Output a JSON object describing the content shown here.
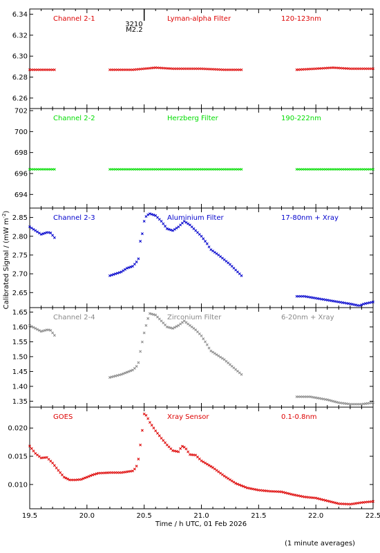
{
  "footnote": "(1 minute averages)",
  "colors": {
    "red": "#dd0000",
    "green": "#00dd00",
    "blue": "#0000cc",
    "grey": "#888888"
  },
  "chart_data": {
    "type": "scatter",
    "xlabel": "Time / h UTC, 01 Feb 2026",
    "ylabel_prefix": "Calibrated Signal / (mW m",
    "ylabel_sup": "-2",
    "ylabel_suffix": ")",
    "xlim": [
      19.5,
      22.5
    ],
    "x_ticks": [
      "19.5",
      "20.0",
      "20.5",
      "21.0",
      "21.5",
      "22.0",
      "22.5"
    ],
    "flare_marker": {
      "x": 20.5,
      "id": "3210",
      "class": "M2.2"
    },
    "panels": [
      {
        "name": "Channel 2-1",
        "filter": "Lyman-alpha Filter",
        "band": "120-123nm",
        "color": "red",
        "ylim": [
          6.25,
          6.345
        ],
        "y_ticks": [
          6.26,
          6.28,
          6.3,
          6.32,
          6.34
        ],
        "tick_decimals": 2,
        "points": [
          [
            19.5,
            6.287
          ],
          [
            19.6,
            6.287
          ],
          [
            19.72,
            6.287
          ],
          [
            20.2,
            6.287
          ],
          [
            20.4,
            6.287
          ],
          [
            20.5,
            6.288
          ],
          [
            20.6,
            6.289
          ],
          [
            20.75,
            6.288
          ],
          [
            21.0,
            6.288
          ],
          [
            21.2,
            6.287
          ],
          [
            21.35,
            6.287
          ],
          [
            21.83,
            6.287
          ],
          [
            22.0,
            6.288
          ],
          [
            22.15,
            6.289
          ],
          [
            22.3,
            6.288
          ],
          [
            22.5,
            6.288
          ]
        ],
        "gaps": [
          [
            19.73,
            20.19
          ],
          [
            21.36,
            21.82
          ]
        ]
      },
      {
        "name": "Channel 2-2",
        "filter": "Herzberg Filter",
        "band": "190-222nm",
        "color": "green",
        "ylim": [
          692.7,
          702.2
        ],
        "y_ticks": [
          694,
          696,
          698,
          700,
          702
        ],
        "tick_decimals": 0,
        "points": [
          [
            19.5,
            696.4
          ],
          [
            19.72,
            696.4
          ],
          [
            20.2,
            696.4
          ],
          [
            20.8,
            696.4
          ],
          [
            21.35,
            696.4
          ],
          [
            21.83,
            696.4
          ],
          [
            22.5,
            696.4
          ]
        ],
        "gaps": [
          [
            19.73,
            20.19
          ],
          [
            21.36,
            21.82
          ]
        ]
      },
      {
        "name": "Channel 2-3",
        "filter": "Aluminium Filter",
        "band": "17-80nm + Xray",
        "color": "blue",
        "ylim": [
          2.61,
          2.875
        ],
        "y_ticks": [
          2.65,
          2.7,
          2.75,
          2.8,
          2.85
        ],
        "tick_decimals": 2,
        "points": [
          [
            19.5,
            2.825
          ],
          [
            19.55,
            2.815
          ],
          [
            19.6,
            2.805
          ],
          [
            19.65,
            2.81
          ],
          [
            19.68,
            2.81
          ],
          [
            19.72,
            2.795
          ],
          [
            20.2,
            2.695
          ],
          [
            20.25,
            2.7
          ],
          [
            20.3,
            2.705
          ],
          [
            20.35,
            2.715
          ],
          [
            20.4,
            2.72
          ],
          [
            20.43,
            2.73
          ],
          [
            20.45,
            2.74
          ],
          [
            20.46,
            2.78
          ],
          [
            20.48,
            2.8
          ],
          [
            20.5,
            2.84
          ],
          [
            20.52,
            2.855
          ],
          [
            20.55,
            2.86
          ],
          [
            20.6,
            2.855
          ],
          [
            20.65,
            2.84
          ],
          [
            20.7,
            2.82
          ],
          [
            20.75,
            2.815
          ],
          [
            20.8,
            2.825
          ],
          [
            20.85,
            2.84
          ],
          [
            20.9,
            2.83
          ],
          [
            20.95,
            2.815
          ],
          [
            21.0,
            2.8
          ],
          [
            21.05,
            2.78
          ],
          [
            21.08,
            2.765
          ],
          [
            21.15,
            2.75
          ],
          [
            21.25,
            2.725
          ],
          [
            21.35,
            2.695
          ],
          [
            21.83,
            2.64
          ],
          [
            21.9,
            2.64
          ],
          [
            22.0,
            2.635
          ],
          [
            22.1,
            2.63
          ],
          [
            22.2,
            2.625
          ],
          [
            22.3,
            2.62
          ],
          [
            22.38,
            2.615
          ],
          [
            22.42,
            2.62
          ],
          [
            22.5,
            2.625
          ]
        ],
        "gaps": [
          [
            19.73,
            20.19
          ],
          [
            21.36,
            21.82
          ]
        ]
      },
      {
        "name": "Channel 2-4",
        "filter": "Zirconium Filter",
        "band": "6-20nm + Xray",
        "color": "grey",
        "ylim": [
          1.33,
          1.665
        ],
        "y_ticks": [
          1.35,
          1.4,
          1.45,
          1.5,
          1.55,
          1.6,
          1.65
        ],
        "tick_decimals": 2,
        "points": [
          [
            19.5,
            1.605
          ],
          [
            19.55,
            1.595
          ],
          [
            19.6,
            1.585
          ],
          [
            19.65,
            1.59
          ],
          [
            19.68,
            1.59
          ],
          [
            19.72,
            1.57
          ],
          [
            20.2,
            1.43
          ],
          [
            20.3,
            1.44
          ],
          [
            20.4,
            1.455
          ],
          [
            20.43,
            1.465
          ],
          [
            20.45,
            1.48
          ],
          [
            20.47,
            1.525
          ],
          [
            20.5,
            1.58
          ],
          [
            20.53,
            1.625
          ],
          [
            20.55,
            1.645
          ],
          [
            20.6,
            1.64
          ],
          [
            20.65,
            1.62
          ],
          [
            20.7,
            1.6
          ],
          [
            20.75,
            1.595
          ],
          [
            20.8,
            1.605
          ],
          [
            20.85,
            1.62
          ],
          [
            20.9,
            1.605
          ],
          [
            20.95,
            1.59
          ],
          [
            21.0,
            1.57
          ],
          [
            21.05,
            1.54
          ],
          [
            21.08,
            1.52
          ],
          [
            21.2,
            1.49
          ],
          [
            21.35,
            1.44
          ],
          [
            21.83,
            1.365
          ],
          [
            21.95,
            1.365
          ],
          [
            22.1,
            1.355
          ],
          [
            22.2,
            1.345
          ],
          [
            22.3,
            1.34
          ],
          [
            22.4,
            1.34
          ],
          [
            22.5,
            1.345
          ]
        ],
        "gaps": [
          [
            19.73,
            20.19
          ],
          [
            21.36,
            21.82
          ]
        ]
      },
      {
        "name": "GOES",
        "filter": "Xray Sensor",
        "band": "0.1-0.8nm",
        "color": "red",
        "ylim": [
          0.0057,
          0.0237
        ],
        "y_ticks": [
          0.01,
          0.015,
          0.02
        ],
        "tick_decimals": 3,
        "points": [
          [
            19.5,
            0.0168
          ],
          [
            19.55,
            0.0155
          ],
          [
            19.6,
            0.0147
          ],
          [
            19.65,
            0.0148
          ],
          [
            19.7,
            0.0138
          ],
          [
            19.75,
            0.0125
          ],
          [
            19.8,
            0.0113
          ],
          [
            19.85,
            0.0108
          ],
          [
            19.9,
            0.0108
          ],
          [
            19.95,
            0.0109
          ],
          [
            20.0,
            0.0113
          ],
          [
            20.05,
            0.0117
          ],
          [
            20.1,
            0.012
          ],
          [
            20.2,
            0.0121
          ],
          [
            20.3,
            0.0121
          ],
          [
            20.4,
            0.0124
          ],
          [
            20.43,
            0.013
          ],
          [
            20.45,
            0.0145
          ],
          [
            20.46,
            0.016
          ],
          [
            20.48,
            0.019
          ],
          [
            20.5,
            0.0225
          ],
          [
            20.52,
            0.0222
          ],
          [
            20.55,
            0.021
          ],
          [
            20.6,
            0.0195
          ],
          [
            20.65,
            0.0182
          ],
          [
            20.7,
            0.017
          ],
          [
            20.75,
            0.016
          ],
          [
            20.8,
            0.0158
          ],
          [
            20.83,
            0.0168
          ],
          [
            20.86,
            0.0165
          ],
          [
            20.9,
            0.0153
          ],
          [
            20.95,
            0.0152
          ],
          [
            21.0,
            0.0142
          ],
          [
            21.1,
            0.013
          ],
          [
            21.2,
            0.0115
          ],
          [
            21.3,
            0.0102
          ],
          [
            21.4,
            0.0094
          ],
          [
            21.5,
            0.009
          ],
          [
            21.6,
            0.0088
          ],
          [
            21.7,
            0.0087
          ],
          [
            21.8,
            0.0082
          ],
          [
            21.9,
            0.0078
          ],
          [
            22.0,
            0.0076
          ],
          [
            22.1,
            0.0071
          ],
          [
            22.2,
            0.0066
          ],
          [
            22.3,
            0.0065
          ],
          [
            22.4,
            0.0068
          ],
          [
            22.5,
            0.007
          ]
        ],
        "gaps": []
      }
    ]
  }
}
